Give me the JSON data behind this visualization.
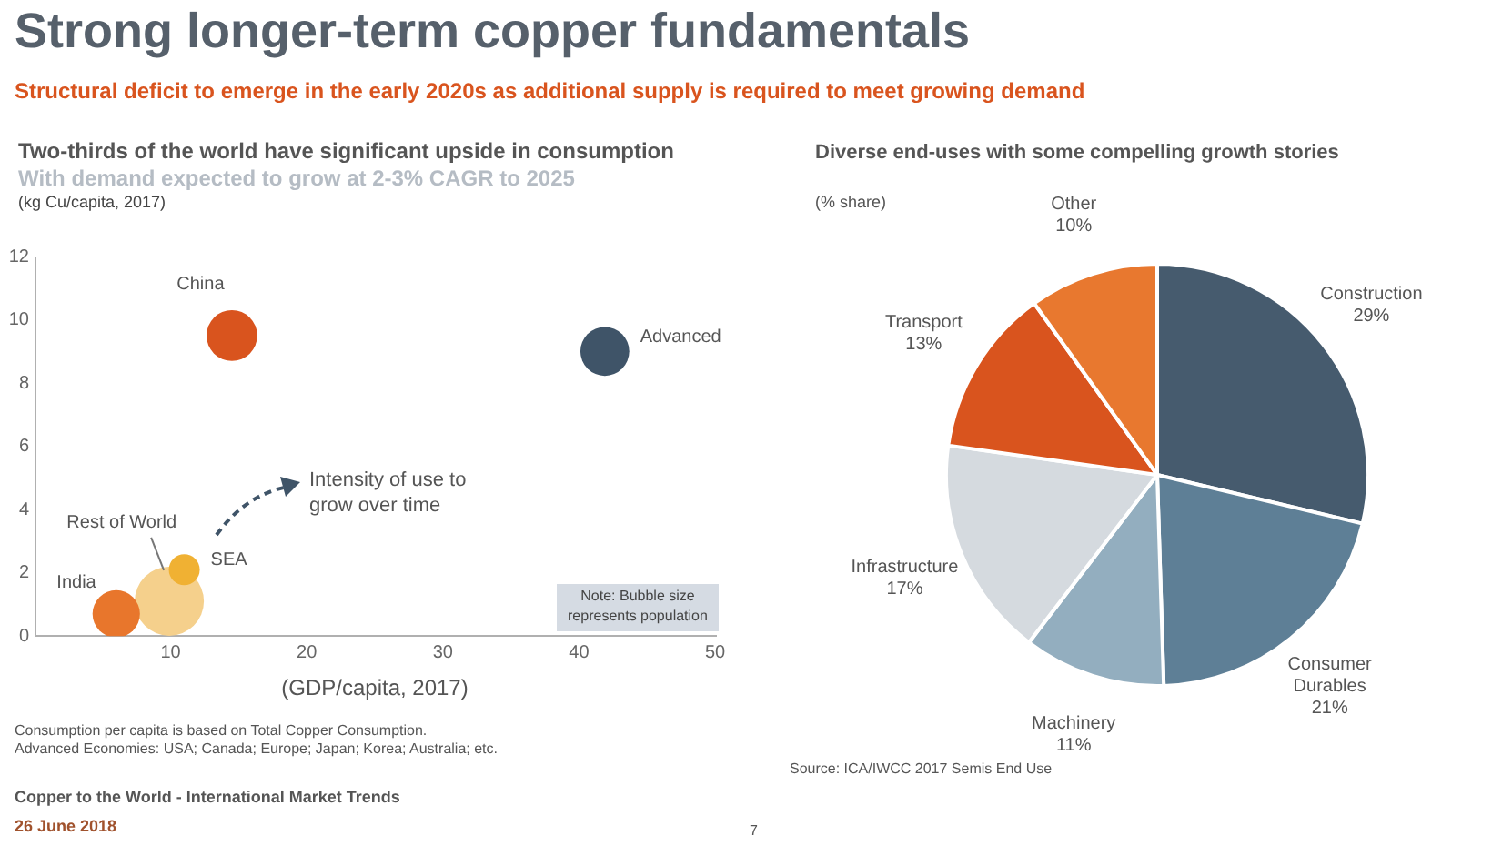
{
  "chart_data": [
    {
      "type": "bubble",
      "title": "Two-thirds of the world have significant upside in consumption",
      "subtitle": "With demand expected to grow at 2-3% CAGR to 2025",
      "ylabel": "(kg Cu/capita, 2017)",
      "xlabel": "(GDP/capita, 2017)",
      "xlim": [
        0,
        50
      ],
      "xticks": [
        10,
        20,
        30,
        40,
        50
      ],
      "ylim": [
        0,
        12
      ],
      "yticks": [
        0,
        2,
        4,
        6,
        8,
        10,
        12
      ],
      "series": [
        {
          "name": "China",
          "color": "#d9541e",
          "x": [
            14.5
          ],
          "values": [
            9.5
          ],
          "sizes": [
            0.54
          ]
        },
        {
          "name": "Advanced",
          "color": "#3f5468",
          "x": [
            41.9
          ],
          "values": [
            9.0
          ],
          "sizes": [
            0.5
          ]
        },
        {
          "name": "India",
          "color": "#e8762c",
          "x": [
            6.0
          ],
          "values": [
            0.7
          ],
          "sizes": [
            0.47
          ]
        },
        {
          "name": "SEA",
          "color": "#f0b133",
          "x": [
            11.0
          ],
          "values": [
            2.1
          ],
          "sizes": [
            0.2
          ]
        },
        {
          "name": "Rest of World",
          "color": "#f5d08c",
          "x": [
            9.9
          ],
          "values": [
            1.1
          ],
          "sizes": [
            1
          ]
        }
      ],
      "annotations": [
        "Strong longer-term copper fundamentals",
        "Structural deficit to emerge in the early 2020s as additional supply is required to meet growing demand",
        "Intensity of use to grow over time",
        "Note: Bubble size represents population",
        "Consumption per capita is based on Total Copper Consumption.",
        "Advanced Economies: USA; Canada; Europe; Japan; Korea; Australia; etc.",
        "Copper to the World - International Market Trends",
        "26 June 2018",
        "7"
      ]
    },
    {
      "type": "pie",
      "title": "Diverse end-uses with some compelling growth stories",
      "subtitle": "(% share)",
      "categories": [
        "Construction",
        "Consumer Durables",
        "Machinery",
        "Infrastructure",
        "Transport",
        "Other"
      ],
      "values": [
        29,
        21,
        11,
        17,
        13,
        10
      ],
      "colors": [
        "#465b6e",
        "#5e7f96",
        "#93aebf",
        "#d5dadf",
        "#d9541e",
        "#e8782f"
      ],
      "value_labels": [
        "29%",
        "21%",
        "11%",
        "17%",
        "13%",
        "10%"
      ],
      "annotations": [
        "Source: ICA/IWCC 2017 Semis End Use"
      ]
    }
  ]
}
